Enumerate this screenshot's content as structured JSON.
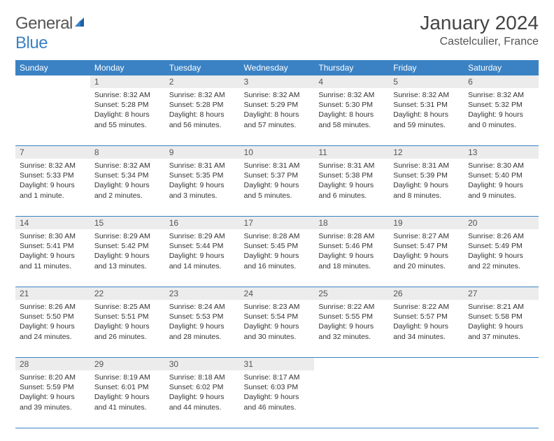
{
  "brand": {
    "part1": "General",
    "part2": "Blue"
  },
  "title": "January 2024",
  "location": "Castelculier, France",
  "colors": {
    "header_bg": "#3B82C4",
    "header_text": "#ffffff",
    "daynum_bg": "#ECECEC",
    "rule": "#3B82C4",
    "text": "#333333"
  },
  "weekdays": [
    "Sunday",
    "Monday",
    "Tuesday",
    "Wednesday",
    "Thursday",
    "Friday",
    "Saturday"
  ],
  "weeks": [
    [
      null,
      {
        "n": "1",
        "sr": "Sunrise: 8:32 AM",
        "ss": "Sunset: 5:28 PM",
        "d1": "Daylight: 8 hours",
        "d2": "and 55 minutes."
      },
      {
        "n": "2",
        "sr": "Sunrise: 8:32 AM",
        "ss": "Sunset: 5:28 PM",
        "d1": "Daylight: 8 hours",
        "d2": "and 56 minutes."
      },
      {
        "n": "3",
        "sr": "Sunrise: 8:32 AM",
        "ss": "Sunset: 5:29 PM",
        "d1": "Daylight: 8 hours",
        "d2": "and 57 minutes."
      },
      {
        "n": "4",
        "sr": "Sunrise: 8:32 AM",
        "ss": "Sunset: 5:30 PM",
        "d1": "Daylight: 8 hours",
        "d2": "and 58 minutes."
      },
      {
        "n": "5",
        "sr": "Sunrise: 8:32 AM",
        "ss": "Sunset: 5:31 PM",
        "d1": "Daylight: 8 hours",
        "d2": "and 59 minutes."
      },
      {
        "n": "6",
        "sr": "Sunrise: 8:32 AM",
        "ss": "Sunset: 5:32 PM",
        "d1": "Daylight: 9 hours",
        "d2": "and 0 minutes."
      }
    ],
    [
      {
        "n": "7",
        "sr": "Sunrise: 8:32 AM",
        "ss": "Sunset: 5:33 PM",
        "d1": "Daylight: 9 hours",
        "d2": "and 1 minute."
      },
      {
        "n": "8",
        "sr": "Sunrise: 8:32 AM",
        "ss": "Sunset: 5:34 PM",
        "d1": "Daylight: 9 hours",
        "d2": "and 2 minutes."
      },
      {
        "n": "9",
        "sr": "Sunrise: 8:31 AM",
        "ss": "Sunset: 5:35 PM",
        "d1": "Daylight: 9 hours",
        "d2": "and 3 minutes."
      },
      {
        "n": "10",
        "sr": "Sunrise: 8:31 AM",
        "ss": "Sunset: 5:37 PM",
        "d1": "Daylight: 9 hours",
        "d2": "and 5 minutes."
      },
      {
        "n": "11",
        "sr": "Sunrise: 8:31 AM",
        "ss": "Sunset: 5:38 PM",
        "d1": "Daylight: 9 hours",
        "d2": "and 6 minutes."
      },
      {
        "n": "12",
        "sr": "Sunrise: 8:31 AM",
        "ss": "Sunset: 5:39 PM",
        "d1": "Daylight: 9 hours",
        "d2": "and 8 minutes."
      },
      {
        "n": "13",
        "sr": "Sunrise: 8:30 AM",
        "ss": "Sunset: 5:40 PM",
        "d1": "Daylight: 9 hours",
        "d2": "and 9 minutes."
      }
    ],
    [
      {
        "n": "14",
        "sr": "Sunrise: 8:30 AM",
        "ss": "Sunset: 5:41 PM",
        "d1": "Daylight: 9 hours",
        "d2": "and 11 minutes."
      },
      {
        "n": "15",
        "sr": "Sunrise: 8:29 AM",
        "ss": "Sunset: 5:42 PM",
        "d1": "Daylight: 9 hours",
        "d2": "and 13 minutes."
      },
      {
        "n": "16",
        "sr": "Sunrise: 8:29 AM",
        "ss": "Sunset: 5:44 PM",
        "d1": "Daylight: 9 hours",
        "d2": "and 14 minutes."
      },
      {
        "n": "17",
        "sr": "Sunrise: 8:28 AM",
        "ss": "Sunset: 5:45 PM",
        "d1": "Daylight: 9 hours",
        "d2": "and 16 minutes."
      },
      {
        "n": "18",
        "sr": "Sunrise: 8:28 AM",
        "ss": "Sunset: 5:46 PM",
        "d1": "Daylight: 9 hours",
        "d2": "and 18 minutes."
      },
      {
        "n": "19",
        "sr": "Sunrise: 8:27 AM",
        "ss": "Sunset: 5:47 PM",
        "d1": "Daylight: 9 hours",
        "d2": "and 20 minutes."
      },
      {
        "n": "20",
        "sr": "Sunrise: 8:26 AM",
        "ss": "Sunset: 5:49 PM",
        "d1": "Daylight: 9 hours",
        "d2": "and 22 minutes."
      }
    ],
    [
      {
        "n": "21",
        "sr": "Sunrise: 8:26 AM",
        "ss": "Sunset: 5:50 PM",
        "d1": "Daylight: 9 hours",
        "d2": "and 24 minutes."
      },
      {
        "n": "22",
        "sr": "Sunrise: 8:25 AM",
        "ss": "Sunset: 5:51 PM",
        "d1": "Daylight: 9 hours",
        "d2": "and 26 minutes."
      },
      {
        "n": "23",
        "sr": "Sunrise: 8:24 AM",
        "ss": "Sunset: 5:53 PM",
        "d1": "Daylight: 9 hours",
        "d2": "and 28 minutes."
      },
      {
        "n": "24",
        "sr": "Sunrise: 8:23 AM",
        "ss": "Sunset: 5:54 PM",
        "d1": "Daylight: 9 hours",
        "d2": "and 30 minutes."
      },
      {
        "n": "25",
        "sr": "Sunrise: 8:22 AM",
        "ss": "Sunset: 5:55 PM",
        "d1": "Daylight: 9 hours",
        "d2": "and 32 minutes."
      },
      {
        "n": "26",
        "sr": "Sunrise: 8:22 AM",
        "ss": "Sunset: 5:57 PM",
        "d1": "Daylight: 9 hours",
        "d2": "and 34 minutes."
      },
      {
        "n": "27",
        "sr": "Sunrise: 8:21 AM",
        "ss": "Sunset: 5:58 PM",
        "d1": "Daylight: 9 hours",
        "d2": "and 37 minutes."
      }
    ],
    [
      {
        "n": "28",
        "sr": "Sunrise: 8:20 AM",
        "ss": "Sunset: 5:59 PM",
        "d1": "Daylight: 9 hours",
        "d2": "and 39 minutes."
      },
      {
        "n": "29",
        "sr": "Sunrise: 8:19 AM",
        "ss": "Sunset: 6:01 PM",
        "d1": "Daylight: 9 hours",
        "d2": "and 41 minutes."
      },
      {
        "n": "30",
        "sr": "Sunrise: 8:18 AM",
        "ss": "Sunset: 6:02 PM",
        "d1": "Daylight: 9 hours",
        "d2": "and 44 minutes."
      },
      {
        "n": "31",
        "sr": "Sunrise: 8:17 AM",
        "ss": "Sunset: 6:03 PM",
        "d1": "Daylight: 9 hours",
        "d2": "and 46 minutes."
      },
      null,
      null,
      null
    ]
  ]
}
